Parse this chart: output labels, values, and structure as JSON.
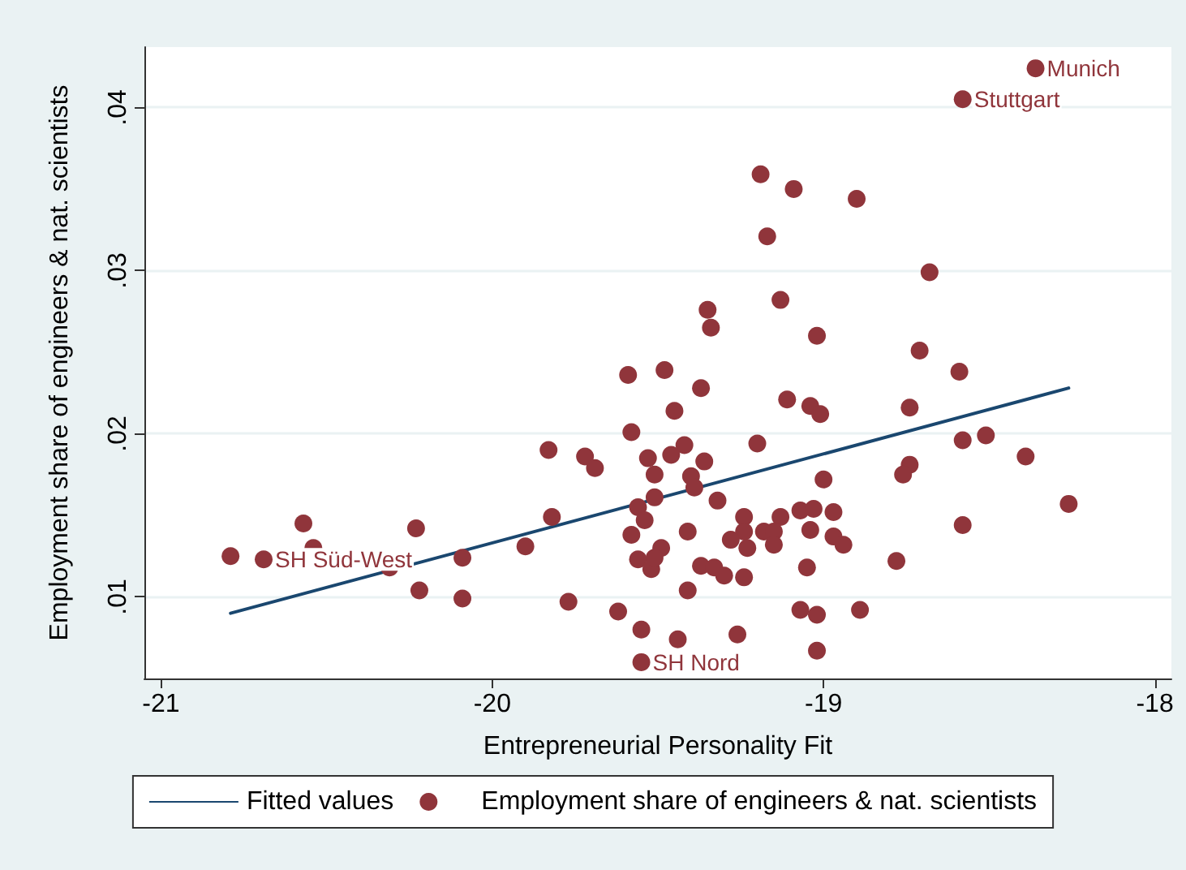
{
  "chart_data": {
    "type": "scatter",
    "xlabel": "Entrepreneurial Personality Fit",
    "ylabel": "Employment share of engineers & nat. scientists",
    "xlim": [
      -21.05,
      -17.95
    ],
    "xticks": [
      -21,
      -20,
      -19,
      -18
    ],
    "ylim": [
      0.005,
      0.0437
    ],
    "yticks": [
      {
        "value": 0.01,
        "label": ".01"
      },
      {
        "value": 0.02,
        "label": ".02"
      },
      {
        "value": 0.03,
        "label": ".03"
      },
      {
        "value": 0.04,
        "label": ".04"
      }
    ],
    "grid": "y",
    "legend": "bottom",
    "marker": "circle",
    "series": [
      {
        "name": "Fitted values",
        "type": "line",
        "color": "#1a476f",
        "marker": "none",
        "line_style": "solid",
        "x": [
          -20.79,
          -18.26
        ],
        "values": [
          0.009,
          0.0228
        ]
      },
      {
        "name": "Employment share of engineers & nat. scientists",
        "color": "#90353b",
        "x": [
          -18.36,
          -18.58,
          -19.19,
          -19.09,
          -18.9,
          -19.17,
          -18.68,
          -19.35,
          -19.34,
          -19.13,
          -19.02,
          -18.71,
          -19.59,
          -19.48,
          -19.58,
          -19.83,
          -19.72,
          -19.69,
          -19.53,
          -19.51,
          -19.51,
          -19.56,
          -19.54,
          -19.58,
          -19.56,
          -19.52,
          -19.49,
          -19.51,
          -19.82,
          -19.9,
          -20.09,
          -20.23,
          -20.57,
          -20.54,
          -20.79,
          -20.69,
          -20.31,
          -20.22,
          -20.09,
          -19.77,
          -19.62,
          -19.55,
          -19.55,
          -18.59,
          -19.37,
          -19.45,
          -19.11,
          -19.04,
          -19.01,
          -18.74,
          -18.58,
          -18.51,
          -18.39,
          -18.26,
          -18.58,
          -18.74,
          -18.76,
          -18.78,
          -19.2,
          -19.42,
          -19.46,
          -19.36,
          -19.4,
          -19.39,
          -19.0,
          -19.32,
          -19.07,
          -19.03,
          -18.97,
          -19.24,
          -19.13,
          -19.41,
          -19.24,
          -19.18,
          -19.15,
          -19.04,
          -19.28,
          -19.23,
          -19.15,
          -18.97,
          -18.94,
          -19.37,
          -19.33,
          -19.3,
          -19.24,
          -19.05,
          -19.41,
          -19.07,
          -19.02,
          -18.89,
          -19.44,
          -19.26,
          -19.02
        ],
        "values": [
          0.0424,
          0.0405,
          0.0359,
          0.035,
          0.0344,
          0.0321,
          0.0299,
          0.0276,
          0.0265,
          0.0282,
          0.026,
          0.0251,
          0.0236,
          0.0239,
          0.0201,
          0.019,
          0.0186,
          0.0179,
          0.0185,
          0.0175,
          0.0161,
          0.0155,
          0.0147,
          0.0138,
          0.0123,
          0.0117,
          0.013,
          0.0124,
          0.0149,
          0.0131,
          0.0124,
          0.0142,
          0.0145,
          0.013,
          0.0125,
          0.0123,
          0.0118,
          0.0104,
          0.0099,
          0.0097,
          0.0091,
          0.008,
          0.006,
          0.0238,
          0.0228,
          0.0214,
          0.0221,
          0.0217,
          0.0212,
          0.0216,
          0.0196,
          0.0199,
          0.0186,
          0.0157,
          0.0144,
          0.0181,
          0.0175,
          0.0122,
          0.0194,
          0.0193,
          0.0187,
          0.0183,
          0.0174,
          0.0167,
          0.0172,
          0.0159,
          0.0153,
          0.0154,
          0.0152,
          0.0149,
          0.0149,
          0.014,
          0.014,
          0.014,
          0.014,
          0.0141,
          0.0135,
          0.013,
          0.0132,
          0.0137,
          0.0132,
          0.0119,
          0.0118,
          0.0113,
          0.0112,
          0.0118,
          0.0104,
          0.0092,
          0.0089,
          0.0092,
          0.0074,
          0.0077,
          0.0067
        ]
      }
    ],
    "annotations": [
      {
        "text": "Munich",
        "x": -18.36,
        "y": 0.0424
      },
      {
        "text": "Stuttgart",
        "x": -18.58,
        "y": 0.0405
      },
      {
        "text": "SH Süd-West",
        "x": -20.69,
        "y": 0.0123
      },
      {
        "text": "SH Nord",
        "x": -19.55,
        "y": 0.006
      }
    ]
  }
}
